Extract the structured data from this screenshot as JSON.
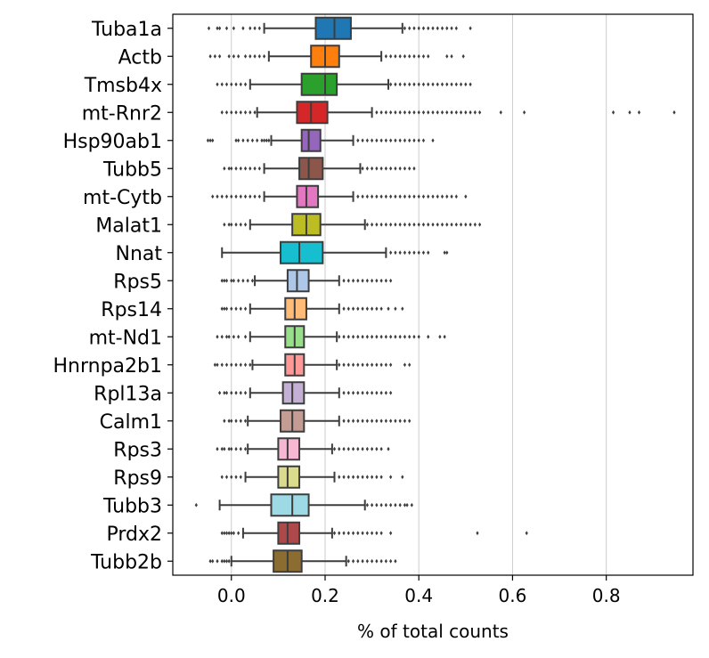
{
  "chart_data": {
    "type": "box",
    "orientation": "horizontal",
    "xlabel": "% of total counts",
    "ylabel": "",
    "title": "",
    "xlim": [
      -0.125,
      0.985
    ],
    "xticks": [
      0.0,
      0.2,
      0.4,
      0.6,
      0.8
    ],
    "xtick_labels": [
      "0.0",
      "0.2",
      "0.4",
      "0.6",
      "0.8"
    ],
    "grid": "vertical",
    "categories": [
      "Tuba1a",
      "Actb",
      "Tmsb4x",
      "mt-Rnr2",
      "Hsp90ab1",
      "Tubb5",
      "mt-Cytb",
      "Malat1",
      "Nnat",
      "Rps5",
      "Rps14",
      "mt-Nd1",
      "Hnrnpa2b1",
      "Rpl13a",
      "Calm1",
      "Rps3",
      "Rps9",
      "Tubb3",
      "Prdx2",
      "Tubb2b"
    ],
    "series": [
      {
        "label": "Tuba1a",
        "color": "#1f77b4",
        "whislo": 0.07,
        "q1": 0.18,
        "med": 0.22,
        "q3": 0.255,
        "whishi": 0.365,
        "outliers_low": [
          -0.048,
          -0.03,
          -0.025,
          -0.01,
          0.005,
          0.025,
          0.04,
          0.05,
          0.06
        ],
        "outliers_high": [
          0.37,
          0.38,
          0.39,
          0.4,
          0.41,
          0.42,
          0.43,
          0.44,
          0.45,
          0.46,
          0.47,
          0.48,
          0.51
        ]
      },
      {
        "label": "Actb",
        "color": "#ff7f0e",
        "whislo": 0.08,
        "q1": 0.17,
        "med": 0.2,
        "q3": 0.23,
        "whishi": 0.32,
        "outliers_low": [
          -0.045,
          -0.035,
          -0.025,
          -0.005,
          0.005,
          0.015,
          0.03,
          0.04,
          0.05,
          0.06,
          0.07
        ],
        "outliers_high": [
          0.33,
          0.34,
          0.35,
          0.36,
          0.37,
          0.38,
          0.39,
          0.4,
          0.41,
          0.42,
          0.46,
          0.47,
          0.495
        ]
      },
      {
        "label": "Tmsb4x",
        "color": "#2ca02c",
        "whislo": 0.04,
        "q1": 0.15,
        "med": 0.2,
        "q3": 0.225,
        "whishi": 0.335,
        "outliers_low": [
          -0.03,
          -0.02,
          -0.01,
          0.0,
          0.01,
          0.02,
          0.03
        ],
        "outliers_high": [
          0.34,
          0.35,
          0.36,
          0.37,
          0.38,
          0.39,
          0.4,
          0.41,
          0.42,
          0.43,
          0.44,
          0.45,
          0.46,
          0.47,
          0.48,
          0.49,
          0.5,
          0.51
        ]
      },
      {
        "label": "mt-Rnr2",
        "color": "#d62728",
        "whislo": 0.055,
        "q1": 0.14,
        "med": 0.17,
        "q3": 0.205,
        "whishi": 0.3,
        "outliers_low": [
          -0.02,
          -0.01,
          0.0,
          0.01,
          0.02,
          0.03,
          0.04,
          0.05
        ],
        "outliers_high": [
          0.31,
          0.32,
          0.33,
          0.34,
          0.35,
          0.36,
          0.37,
          0.38,
          0.39,
          0.4,
          0.41,
          0.42,
          0.43,
          0.44,
          0.45,
          0.46,
          0.47,
          0.48,
          0.49,
          0.5,
          0.51,
          0.52,
          0.53,
          0.575,
          0.625,
          0.815,
          0.85,
          0.87,
          0.945
        ]
      },
      {
        "label": "Hsp90ab1",
        "color": "#9467bd",
        "whislo": 0.085,
        "q1": 0.15,
        "med": 0.165,
        "q3": 0.19,
        "whishi": 0.26,
        "outliers_low": [
          -0.05,
          -0.045,
          -0.04,
          0.01,
          0.015,
          0.025,
          0.035,
          0.045,
          0.055,
          0.065,
          0.07,
          0.075,
          0.08
        ],
        "outliers_high": [
          0.27,
          0.28,
          0.29,
          0.3,
          0.31,
          0.32,
          0.33,
          0.34,
          0.35,
          0.36,
          0.37,
          0.38,
          0.39,
          0.4,
          0.41,
          0.43
        ]
      },
      {
        "label": "Tubb5",
        "color": "#8c564b",
        "whislo": 0.07,
        "q1": 0.145,
        "med": 0.165,
        "q3": 0.195,
        "whishi": 0.275,
        "outliers_low": [
          -0.015,
          -0.005,
          0.0,
          0.01,
          0.02,
          0.03,
          0.04,
          0.05,
          0.06
        ],
        "outliers_high": [
          0.28,
          0.29,
          0.3,
          0.31,
          0.32,
          0.33,
          0.34,
          0.35,
          0.36,
          0.37,
          0.38,
          0.39
        ]
      },
      {
        "label": "mt-Cytb",
        "color": "#e377c2",
        "whislo": 0.07,
        "q1": 0.14,
        "med": 0.16,
        "q3": 0.185,
        "whishi": 0.26,
        "outliers_low": [
          -0.04,
          -0.03,
          -0.02,
          -0.01,
          0.0,
          0.01,
          0.02,
          0.03,
          0.04,
          0.05,
          0.06
        ],
        "outliers_high": [
          0.27,
          0.28,
          0.29,
          0.3,
          0.31,
          0.32,
          0.33,
          0.34,
          0.35,
          0.36,
          0.37,
          0.38,
          0.39,
          0.4,
          0.41,
          0.42,
          0.43,
          0.44,
          0.45,
          0.46,
          0.47,
          0.48,
          0.5
        ]
      },
      {
        "label": "Malat1",
        "color": "#bcbd22",
        "whislo": 0.04,
        "q1": 0.13,
        "med": 0.16,
        "q3": 0.19,
        "whishi": 0.285,
        "outliers_low": [
          -0.015,
          -0.005,
          0.0,
          0.01,
          0.02,
          0.03
        ],
        "outliers_high": [
          0.29,
          0.3,
          0.31,
          0.32,
          0.33,
          0.34,
          0.35,
          0.36,
          0.37,
          0.38,
          0.39,
          0.4,
          0.41,
          0.42,
          0.43,
          0.44,
          0.45,
          0.46,
          0.47,
          0.48,
          0.49,
          0.5,
          0.51,
          0.52,
          0.53
        ]
      },
      {
        "label": "Nnat",
        "color": "#17becf",
        "whislo": -0.02,
        "q1": 0.105,
        "med": 0.145,
        "q3": 0.195,
        "whishi": 0.33,
        "outliers_low": [],
        "outliers_high": [
          0.34,
          0.35,
          0.36,
          0.37,
          0.38,
          0.39,
          0.4,
          0.41,
          0.42,
          0.455,
          0.46
        ]
      },
      {
        "label": "Rps5",
        "color": "#aec7e8",
        "whislo": 0.05,
        "q1": 0.12,
        "med": 0.14,
        "q3": 0.165,
        "whishi": 0.23,
        "outliers_low": [
          -0.02,
          -0.015,
          -0.01,
          0.0,
          0.005,
          0.015,
          0.025,
          0.035,
          0.045
        ],
        "outliers_high": [
          0.24,
          0.25,
          0.26,
          0.27,
          0.28,
          0.29,
          0.3,
          0.31,
          0.32,
          0.33,
          0.34
        ]
      },
      {
        "label": "Rps14",
        "color": "#ffbb78",
        "whislo": 0.04,
        "q1": 0.115,
        "med": 0.135,
        "q3": 0.16,
        "whishi": 0.23,
        "outliers_low": [
          -0.02,
          -0.015,
          -0.01,
          0.0,
          0.01,
          0.02,
          0.03
        ],
        "outliers_high": [
          0.24,
          0.25,
          0.26,
          0.27,
          0.28,
          0.29,
          0.3,
          0.31,
          0.32,
          0.335,
          0.35,
          0.365
        ]
      },
      {
        "label": "mt-Nd1",
        "color": "#98df8a",
        "whislo": 0.04,
        "q1": 0.115,
        "med": 0.135,
        "q3": 0.155,
        "whishi": 0.225,
        "outliers_low": [
          -0.03,
          -0.02,
          -0.01,
          -0.005,
          0.005,
          0.015,
          0.03
        ],
        "outliers_high": [
          0.23,
          0.24,
          0.25,
          0.26,
          0.27,
          0.28,
          0.29,
          0.3,
          0.31,
          0.32,
          0.33,
          0.34,
          0.35,
          0.36,
          0.37,
          0.38,
          0.39,
          0.4,
          0.42,
          0.445,
          0.455
        ]
      },
      {
        "label": "Hnrnpa2b1",
        "color": "#ff9896",
        "whislo": 0.045,
        "q1": 0.115,
        "med": 0.135,
        "q3": 0.155,
        "whishi": 0.225,
        "outliers_low": [
          -0.035,
          -0.03,
          -0.02,
          -0.01,
          0.0,
          0.01,
          0.02,
          0.03,
          0.04
        ],
        "outliers_high": [
          0.23,
          0.24,
          0.25,
          0.26,
          0.27,
          0.28,
          0.29,
          0.3,
          0.31,
          0.32,
          0.33,
          0.34,
          0.37,
          0.38
        ]
      },
      {
        "label": "Rpl13a",
        "color": "#c5b0d5",
        "whislo": 0.04,
        "q1": 0.11,
        "med": 0.13,
        "q3": 0.155,
        "whishi": 0.23,
        "outliers_low": [
          -0.025,
          -0.015,
          -0.01,
          0.0,
          0.01,
          0.02,
          0.03
        ],
        "outliers_high": [
          0.24,
          0.25,
          0.26,
          0.27,
          0.28,
          0.29,
          0.3,
          0.31,
          0.32,
          0.33,
          0.34
        ]
      },
      {
        "label": "Calm1",
        "color": "#c49c94",
        "whislo": 0.035,
        "q1": 0.105,
        "med": 0.13,
        "q3": 0.155,
        "whishi": 0.23,
        "outliers_low": [
          -0.015,
          -0.005,
          0.0,
          0.01,
          0.02,
          0.03
        ],
        "outliers_high": [
          0.24,
          0.25,
          0.26,
          0.27,
          0.28,
          0.29,
          0.3,
          0.31,
          0.32,
          0.33,
          0.34,
          0.35,
          0.36,
          0.37,
          0.38
        ]
      },
      {
        "label": "Rps3",
        "color": "#f7b6d2",
        "whislo": 0.035,
        "q1": 0.1,
        "med": 0.12,
        "q3": 0.145,
        "whishi": 0.215,
        "outliers_low": [
          -0.03,
          -0.02,
          -0.015,
          -0.005,
          0.0,
          0.01,
          0.02,
          0.03
        ],
        "outliers_high": [
          0.22,
          0.23,
          0.24,
          0.25,
          0.26,
          0.27,
          0.28,
          0.29,
          0.3,
          0.31,
          0.32,
          0.335
        ]
      },
      {
        "label": "Rps9",
        "color": "#dbdb8d",
        "whislo": 0.03,
        "q1": 0.1,
        "med": 0.12,
        "q3": 0.145,
        "whishi": 0.22,
        "outliers_low": [
          -0.02,
          -0.01,
          0.0,
          0.01,
          0.02
        ],
        "outliers_high": [
          0.23,
          0.24,
          0.25,
          0.26,
          0.27,
          0.28,
          0.29,
          0.3,
          0.31,
          0.32,
          0.34,
          0.365
        ]
      },
      {
        "label": "Tubb3",
        "color": "#9edae5",
        "whislo": -0.025,
        "q1": 0.085,
        "med": 0.13,
        "q3": 0.165,
        "whishi": 0.285,
        "outliers_low": [
          -0.075
        ],
        "outliers_high": [
          0.29,
          0.3,
          0.31,
          0.32,
          0.33,
          0.34,
          0.35,
          0.36,
          0.37,
          0.375,
          0.385
        ]
      },
      {
        "label": "Prdx2",
        "color": "#ad494a",
        "whislo": 0.025,
        "q1": 0.1,
        "med": 0.12,
        "q3": 0.145,
        "whishi": 0.215,
        "outliers_low": [
          -0.02,
          -0.015,
          -0.01,
          -0.005,
          0.0,
          0.005,
          0.015
        ],
        "outliers_high": [
          0.22,
          0.23,
          0.24,
          0.25,
          0.26,
          0.27,
          0.28,
          0.29,
          0.3,
          0.31,
          0.32,
          0.34,
          0.525,
          0.63
        ]
      },
      {
        "label": "Tubb2b",
        "color": "#8c6d31",
        "whislo": 0.0,
        "q1": 0.09,
        "med": 0.12,
        "q3": 0.15,
        "whishi": 0.245,
        "outliers_low": [
          -0.045,
          -0.04,
          -0.03,
          -0.02,
          -0.015,
          -0.01,
          -0.005
        ],
        "outliers_high": [
          0.25,
          0.26,
          0.27,
          0.28,
          0.29,
          0.3,
          0.31,
          0.32,
          0.33,
          0.34,
          0.35
        ]
      }
    ]
  }
}
